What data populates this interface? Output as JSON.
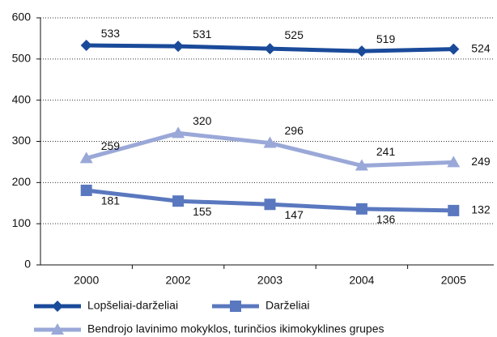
{
  "chart_data": {
    "type": "line",
    "categories": [
      "2000",
      "2002",
      "2003",
      "2004",
      "2005"
    ],
    "series": [
      {
        "name": "Lopšeliai-darželiai",
        "color": "#1a4a9a",
        "marker": "diamond",
        "values": [
          533,
          531,
          525,
          519,
          524
        ]
      },
      {
        "name": "Darželiai",
        "color": "#5a78bf",
        "marker": "square",
        "values": [
          181,
          155,
          147,
          136,
          132
        ]
      },
      {
        "name": "Bendrojo lavinimo mokyklos, turinčios ikimokyklines grupes",
        "color": "#9aa8d8",
        "marker": "triangle",
        "values": [
          259,
          320,
          296,
          241,
          249
        ]
      }
    ],
    "ylim": [
      0,
      600
    ],
    "yticks": [
      0,
      100,
      200,
      300,
      400,
      500,
      600
    ],
    "grid": true
  }
}
